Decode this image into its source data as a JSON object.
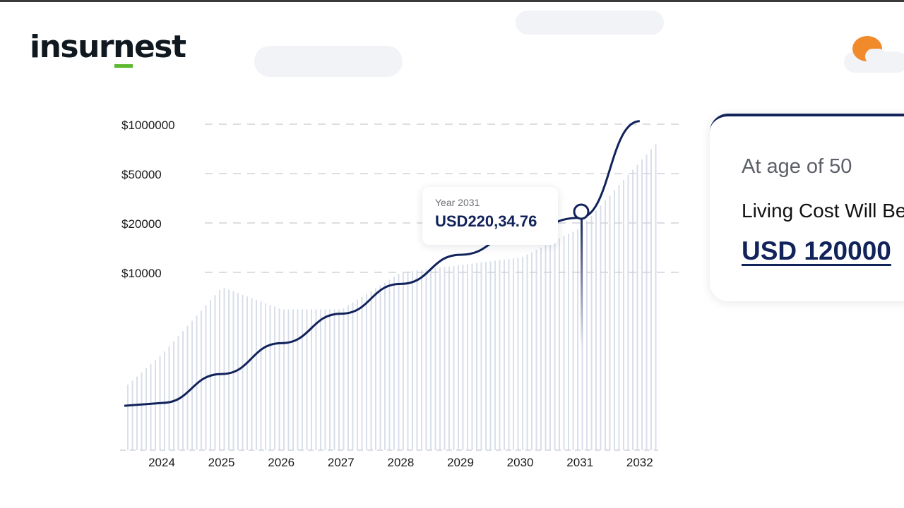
{
  "brand": {
    "name": "insurnest"
  },
  "colors": {
    "accent": "#11235a",
    "brand_green": "#5cb82f",
    "sun": "#f08a2a",
    "bars": "#d9deeb"
  },
  "icons": {
    "weather": "sun-cloud-icon"
  },
  "tooltip": {
    "year_label": "Year 2031",
    "value": "USD220,34.76"
  },
  "card": {
    "age_text": "At age of 50",
    "living_text": "Living Cost Will Be",
    "amount": "USD 120000"
  },
  "chart_data": {
    "type": "line",
    "title": "",
    "xlabel": "",
    "ylabel": "",
    "x": [
      "2024",
      "2025",
      "2026",
      "2027",
      "2028",
      "2029",
      "2030",
      "2031",
      "2032"
    ],
    "y_ticks": [
      "$1000000",
      "$50000",
      "$20000",
      "$10000"
    ],
    "grid": true,
    "series": [
      {
        "values": [
          1600,
          2400,
          3700,
          5600,
          8500,
          12800,
          17500,
          22035,
          1200000
        ]
      }
    ],
    "highlight": {
      "x": "2031",
      "label": "Year 2031",
      "value": "USD220,34.76"
    },
    "background_bars": {
      "type": "bar",
      "approx_level_percent": [
        26,
        44,
        38,
        38,
        48,
        50,
        52,
        60,
        78
      ]
    }
  }
}
